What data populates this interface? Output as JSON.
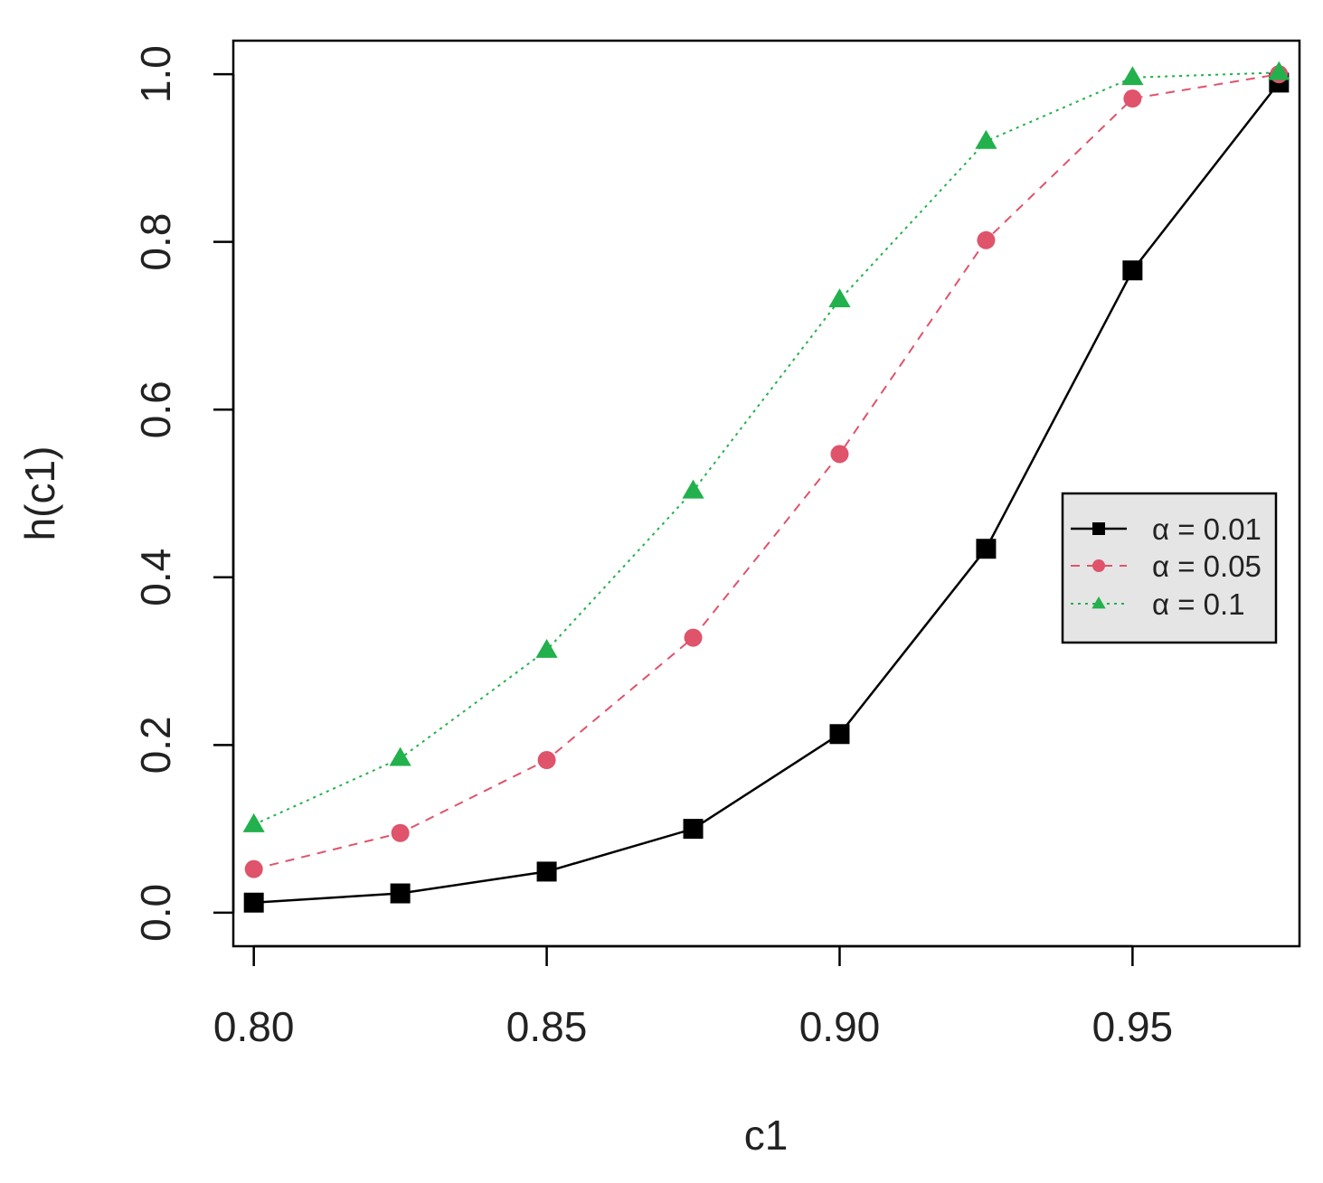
{
  "chart_data": {
    "type": "line",
    "title": "",
    "xlabel": "c1",
    "ylabel": "h(c1)",
    "x": [
      0.8,
      0.825,
      0.85,
      0.875,
      0.9,
      0.925,
      0.95,
      0.975
    ],
    "xlim": [
      0.7965,
      0.9785
    ],
    "ylim": [
      -0.04,
      1.04
    ],
    "xticks": [
      0.8,
      0.85,
      0.9,
      0.95
    ],
    "xtick_labels": [
      "0.80",
      "0.85",
      "0.90",
      "0.95"
    ],
    "yticks": [
      0.0,
      0.2,
      0.4,
      0.6,
      0.8,
      1.0
    ],
    "ytick_labels": [
      "0.0",
      "0.2",
      "0.4",
      "0.6",
      "0.8",
      "1.0"
    ],
    "grid": false,
    "legend_position": "right",
    "legend_background": "#e5e5e5",
    "series": [
      {
        "name": "α = 0.01",
        "color": "#000000",
        "marker": "square",
        "line_style": "solid",
        "values": [
          0.012,
          0.023,
          0.049,
          0.1,
          0.213,
          0.434,
          0.766,
          0.99
        ]
      },
      {
        "name": "α = 0.05",
        "color": "#df536b",
        "marker": "circle",
        "line_style": "dashed",
        "values": [
          0.052,
          0.095,
          0.182,
          0.328,
          0.547,
          0.802,
          0.971,
          1.0
        ]
      },
      {
        "name": "α = 0.1",
        "color": "#22b14c",
        "marker": "triangle",
        "line_style": "dotted",
        "values": [
          0.105,
          0.184,
          0.313,
          0.503,
          0.731,
          0.92,
          0.996,
          1.002
        ]
      }
    ]
  }
}
